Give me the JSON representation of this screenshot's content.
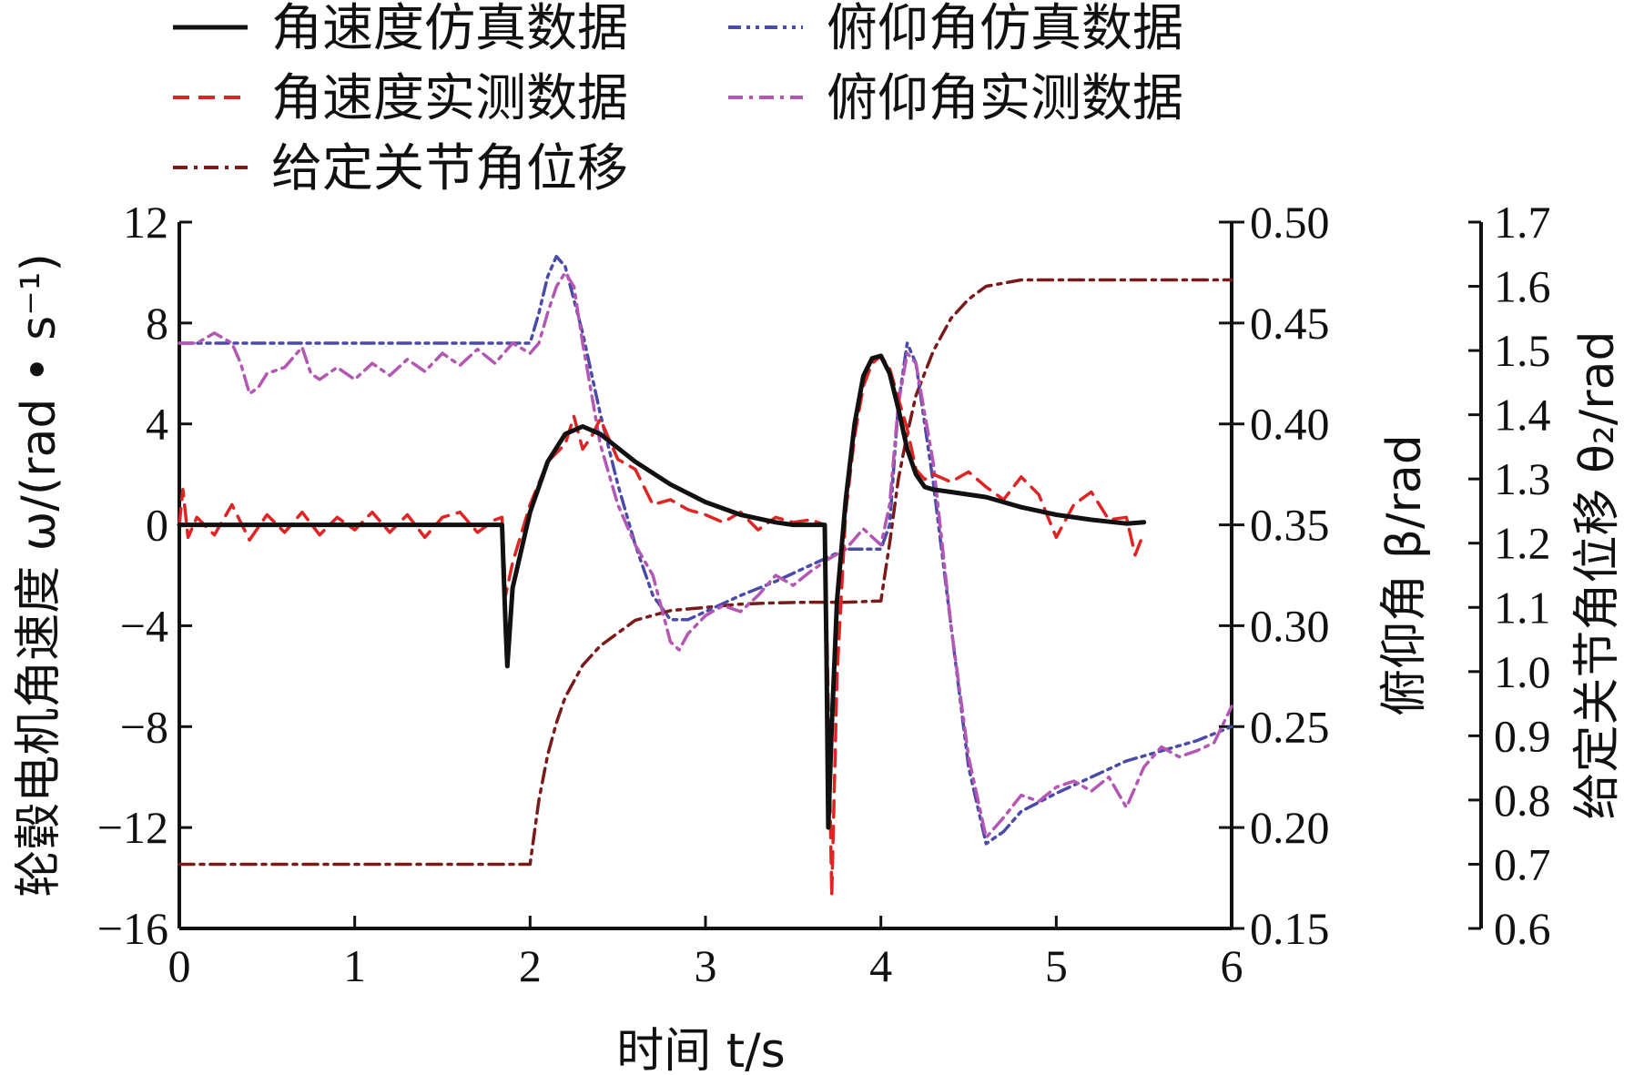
{
  "chart_data": {
    "type": "line",
    "xlabel": "时间 t/s",
    "ylabel_left": "轮毂电机角速度 ω/(rad • s⁻¹)",
    "ylabel_right1": "俯仰角 β/rad",
    "ylabel_right2": "给定关节角位移 θ₂/rad",
    "xlim": [
      0,
      6
    ],
    "xticks": [
      "0",
      "1",
      "2",
      "3",
      "4",
      "5",
      "6"
    ],
    "ylim_left": [
      -16,
      12
    ],
    "yticks_left": [
      "12",
      "8",
      "4",
      "0",
      "−4",
      "−8",
      "−12",
      "−16"
    ],
    "ylim_right1": [
      0.15,
      0.5
    ],
    "yticks_right1": [
      "0.50",
      "0.45",
      "0.40",
      "0.35",
      "0.30",
      "0.25",
      "0.20",
      "0.15"
    ],
    "ylim_right2": [
      0.6,
      1.7
    ],
    "yticks_right2": [
      "1.7",
      "1.6",
      "1.5",
      "1.4",
      "1.3",
      "1.2",
      "1.1",
      "1.0",
      "0.9",
      "0.8",
      "0.7",
      "0.6"
    ],
    "grid": false,
    "legend_position": "top",
    "series": [
      {
        "name": "角速度仿真数据",
        "axis": "left",
        "color": "#111111",
        "dash": "solid",
        "x": [
          0,
          0.3,
          0.8,
          1.2,
          1.6,
          1.84,
          1.85,
          1.86,
          1.87,
          1.9,
          2.0,
          2.1,
          2.2,
          2.3,
          2.4,
          2.6,
          2.8,
          3.0,
          3.2,
          3.4,
          3.5,
          3.68,
          3.69,
          3.7,
          3.72,
          3.75,
          3.8,
          3.85,
          3.9,
          3.95,
          4.0,
          4.05,
          4.1,
          4.15,
          4.2,
          4.25,
          4.3,
          4.4,
          4.6,
          4.8,
          5.0,
          5.2,
          5.4,
          5.5
        ],
        "y": [
          0,
          0,
          0,
          0,
          0,
          0,
          -2.0,
          -4.0,
          -5.6,
          -2.5,
          0.5,
          2.5,
          3.6,
          3.9,
          3.6,
          2.5,
          1.6,
          0.9,
          0.4,
          0.1,
          0,
          0,
          -5.0,
          -12.0,
          -8.0,
          -3.0,
          1.0,
          4.0,
          5.9,
          6.6,
          6.7,
          6.0,
          4.6,
          3.0,
          2.0,
          1.5,
          1.4,
          1.3,
          1.1,
          0.7,
          0.4,
          0.2,
          0.05,
          0.1
        ]
      },
      {
        "name": "角速度实测数据",
        "axis": "left",
        "color": "#e02424",
        "dash": "dash",
        "x": [
          0,
          0.02,
          0.05,
          0.1,
          0.2,
          0.3,
          0.4,
          0.5,
          0.6,
          0.7,
          0.8,
          0.9,
          1.0,
          1.1,
          1.2,
          1.3,
          1.4,
          1.5,
          1.6,
          1.7,
          1.8,
          1.84,
          1.86,
          1.9,
          2.0,
          2.1,
          2.2,
          2.25,
          2.3,
          2.35,
          2.4,
          2.5,
          2.6,
          2.7,
          2.8,
          2.9,
          3.0,
          3.1,
          3.2,
          3.3,
          3.4,
          3.5,
          3.6,
          3.68,
          3.7,
          3.72,
          3.75,
          3.8,
          3.85,
          3.9,
          3.95,
          4.0,
          4.05,
          4.1,
          4.15,
          4.2,
          4.25,
          4.3,
          4.4,
          4.5,
          4.6,
          4.7,
          4.8,
          4.9,
          5.0,
          5.1,
          5.2,
          5.3,
          5.4,
          5.45,
          5.5
        ],
        "y": [
          0,
          1.4,
          -0.5,
          0.3,
          -0.4,
          0.8,
          -0.6,
          0.4,
          -0.3,
          0.5,
          -0.4,
          0.3,
          -0.2,
          0.5,
          -0.3,
          0.4,
          -0.5,
          0.3,
          0.5,
          -0.3,
          0.2,
          0.3,
          -2.8,
          -1.5,
          0.8,
          2.5,
          3.2,
          4.3,
          3.0,
          3.5,
          4.2,
          2.6,
          2.2,
          0.8,
          1.0,
          0.6,
          0.4,
          0.1,
          0.5,
          -0.2,
          0.3,
          0.1,
          0.2,
          0,
          -7.0,
          -14.7,
          -6.0,
          0.5,
          3.5,
          5.5,
          6.4,
          6.7,
          6.2,
          5.0,
          3.8,
          2.2,
          1.8,
          2.0,
          1.7,
          2.1,
          1.5,
          1.0,
          1.9,
          1.2,
          -0.5,
          0.8,
          1.3,
          0.2,
          0.3,
          -1.2,
          -0.3
        ]
      },
      {
        "name": "俯仰角仿真数据",
        "axis": "right1",
        "color": "#4a4aa8",
        "dash": "dashdotdot",
        "x": [
          0,
          0.5,
          1.0,
          1.5,
          2.0,
          2.05,
          2.1,
          2.15,
          2.2,
          2.3,
          2.4,
          2.5,
          2.6,
          2.7,
          2.8,
          2.9,
          3.0,
          3.2,
          3.4,
          3.6,
          3.8,
          4.0,
          4.05,
          4.1,
          4.15,
          4.2,
          4.3,
          4.4,
          4.5,
          4.6,
          4.7,
          4.8,
          5.0,
          5.2,
          5.4,
          5.6,
          5.8,
          6.0
        ],
        "y": [
          0.44,
          0.44,
          0.44,
          0.44,
          0.44,
          0.455,
          0.473,
          0.483,
          0.478,
          0.445,
          0.405,
          0.37,
          0.34,
          0.315,
          0.303,
          0.303,
          0.307,
          0.315,
          0.322,
          0.33,
          0.338,
          0.338,
          0.35,
          0.41,
          0.44,
          0.43,
          0.37,
          0.3,
          0.23,
          0.192,
          0.198,
          0.208,
          0.217,
          0.225,
          0.233,
          0.238,
          0.243,
          0.25
        ]
      },
      {
        "name": "俯仰角实测数据",
        "axis": "right1",
        "color": "#b457b4",
        "dash": "dashdot",
        "x": [
          0,
          0.1,
          0.2,
          0.3,
          0.35,
          0.4,
          0.45,
          0.5,
          0.6,
          0.7,
          0.75,
          0.8,
          0.9,
          1.0,
          1.1,
          1.2,
          1.3,
          1.4,
          1.5,
          1.6,
          1.7,
          1.8,
          1.9,
          2.0,
          2.05,
          2.1,
          2.15,
          2.2,
          2.25,
          2.3,
          2.4,
          2.5,
          2.6,
          2.7,
          2.8,
          2.85,
          2.9,
          3.0,
          3.1,
          3.2,
          3.3,
          3.4,
          3.5,
          3.6,
          3.7,
          3.8,
          3.9,
          4.0,
          4.05,
          4.1,
          4.15,
          4.2,
          4.3,
          4.4,
          4.5,
          4.6,
          4.65,
          4.7,
          4.8,
          4.9,
          5.0,
          5.1,
          5.2,
          5.3,
          5.4,
          5.5,
          5.6,
          5.7,
          5.8,
          5.9,
          6.0
        ],
        "y": [
          0.44,
          0.44,
          0.445,
          0.44,
          0.43,
          0.415,
          0.418,
          0.425,
          0.428,
          0.438,
          0.425,
          0.422,
          0.428,
          0.422,
          0.43,
          0.424,
          0.432,
          0.426,
          0.435,
          0.429,
          0.437,
          0.43,
          0.44,
          0.435,
          0.44,
          0.455,
          0.468,
          0.475,
          0.468,
          0.44,
          0.39,
          0.36,
          0.34,
          0.325,
          0.292,
          0.288,
          0.296,
          0.305,
          0.31,
          0.307,
          0.315,
          0.325,
          0.32,
          0.327,
          0.333,
          0.338,
          0.348,
          0.34,
          0.36,
          0.41,
          0.435,
          0.43,
          0.38,
          0.3,
          0.235,
          0.195,
          0.2,
          0.205,
          0.216,
          0.213,
          0.22,
          0.223,
          0.218,
          0.225,
          0.21,
          0.23,
          0.24,
          0.235,
          0.238,
          0.242,
          0.26
        ]
      },
      {
        "name": "给定关节角位移",
        "axis": "right2",
        "color": "#7a1a1a",
        "dash": "dashdot",
        "x": [
          0,
          0.5,
          1.0,
          1.5,
          2.0,
          2.05,
          2.1,
          2.15,
          2.2,
          2.3,
          2.4,
          2.5,
          2.6,
          2.8,
          3.0,
          3.2,
          3.4,
          3.6,
          3.8,
          4.0,
          4.05,
          4.1,
          4.15,
          4.2,
          4.3,
          4.4,
          4.5,
          4.6,
          4.8,
          5.0,
          5.5,
          6.0
        ],
        "y": [
          0.7,
          0.7,
          0.7,
          0.7,
          0.7,
          0.8,
          0.87,
          0.92,
          0.96,
          1.01,
          1.04,
          1.06,
          1.08,
          1.095,
          1.1,
          1.105,
          1.107,
          1.108,
          1.108,
          1.11,
          1.2,
          1.3,
          1.37,
          1.43,
          1.5,
          1.55,
          1.58,
          1.6,
          1.61,
          1.61,
          1.61,
          1.61
        ]
      }
    ]
  }
}
